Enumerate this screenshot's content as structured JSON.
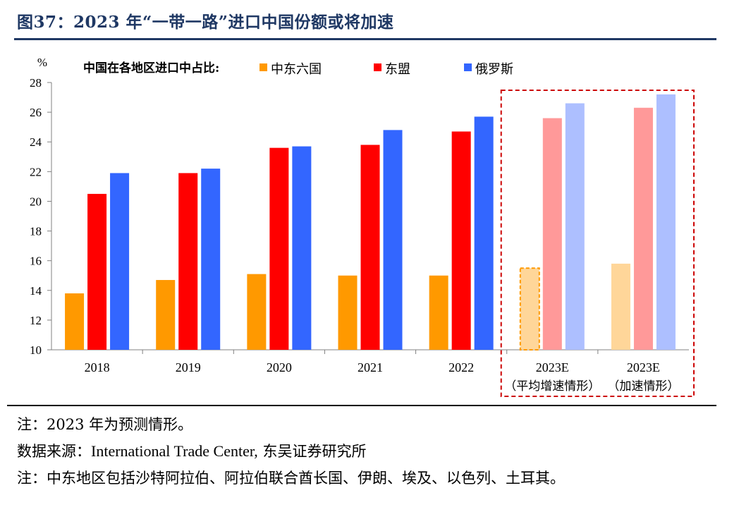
{
  "figure_title": "图37：2023 年“一带一路”进口中国份额或将加速",
  "notes": {
    "note1": "注：2023 年为预测情形。",
    "source_prefix": "数据来源：",
    "source_en": "International Trade Center,",
    "source_cn": " 东吴证券研究所",
    "note2": "注：中东地区包括沙特阿拉伯、阿拉伯联合酋长国、伊朗、埃及、以色列、土耳其。"
  },
  "chart_data": {
    "type": "bar",
    "unit_label": "%",
    "legend_title": "中国在各地区进口中占比:",
    "legend_position": "top",
    "categories": [
      "2018",
      "2019",
      "2020",
      "2021",
      "2022",
      "2023E",
      "2023E"
    ],
    "category_sublabels": [
      "",
      "",
      "",
      "",
      "",
      "（平均增速情形）",
      "（加速情形）"
    ],
    "forecast_from_index": 5,
    "series": [
      {
        "name": "中东六国",
        "color": "#ff9900",
        "forecast_color": "#ffd699",
        "values": [
          13.8,
          14.7,
          15.1,
          15.0,
          15.0,
          15.5,
          15.8
        ]
      },
      {
        "name": "东盟",
        "color": "#ff0000",
        "forecast_color": "#ff9999",
        "values": [
          20.5,
          21.9,
          23.6,
          23.8,
          24.7,
          25.6,
          26.3
        ]
      },
      {
        "name": "俄罗斯",
        "color": "#3366ff",
        "forecast_color": "#adbfff",
        "values": [
          21.9,
          22.2,
          23.7,
          24.8,
          25.7,
          26.6,
          27.2
        ]
      }
    ],
    "ylim": [
      10,
      28
    ],
    "yticks": [
      10,
      12,
      14,
      16,
      18,
      20,
      22,
      24,
      26,
      28
    ],
    "grid": false,
    "forecast_box_color": "#cc0000"
  }
}
